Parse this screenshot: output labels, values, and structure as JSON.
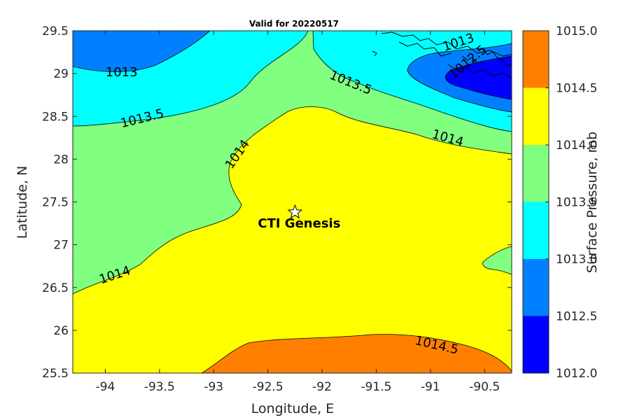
{
  "chart_data": {
    "type": "contour",
    "title": "Valid for 20220517",
    "xlabel": "Longitude, E",
    "ylabel": "Latitude, N",
    "xlim": [
      -94.3,
      -90.25
    ],
    "ylim": [
      25.5,
      29.5
    ],
    "xticks": [
      "-94",
      "-93.5",
      "-93",
      "-92.5",
      "-92",
      "-91.5",
      "-91",
      "-90.5"
    ],
    "xtick_values": [
      -94,
      -93.5,
      -93,
      -92.5,
      -92,
      -91.5,
      -91,
      -90.5
    ],
    "yticks": [
      "25.5",
      "26",
      "26.5",
      "27",
      "27.5",
      "28",
      "28.5",
      "29",
      "29.5"
    ],
    "ytick_values": [
      25.5,
      26,
      26.5,
      27,
      27.5,
      28,
      28.5,
      29,
      29.5
    ],
    "colorbar": {
      "label": "Surface Pressure, mb",
      "ticks": [
        "1015.0",
        "1014.5",
        "1014.0",
        "1013.5",
        "1013.0",
        "1012.5",
        "1012.0"
      ],
      "tick_values": [
        1015.0,
        1014.5,
        1014.0,
        1013.5,
        1013.0,
        1012.5,
        1012.0
      ],
      "levels": [
        {
          "range": [
            1012.0,
            1012.5
          ],
          "color": "#0000ff"
        },
        {
          "range": [
            1012.5,
            1013.0
          ],
          "color": "#0080ff"
        },
        {
          "range": [
            1013.0,
            1013.5
          ],
          "color": "#00ffff"
        },
        {
          "range": [
            1013.5,
            1014.0
          ],
          "color": "#80ff80"
        },
        {
          "range": [
            1014.0,
            1014.5
          ],
          "color": "#ffff00"
        },
        {
          "range": [
            1014.5,
            1015.0
          ],
          "color": "#ff8000"
        }
      ]
    },
    "contour_labels": [
      {
        "text": "1013",
        "lon": -93.85,
        "lat": 28.97,
        "angle": 0
      },
      {
        "text": "1013.5",
        "lon": -93.65,
        "lat": 28.43,
        "angle": -14
      },
      {
        "text": "1014",
        "lon": -92.75,
        "lat": 28.03,
        "angle": -55
      },
      {
        "text": "1013.5",
        "lon": -91.75,
        "lat": 28.85,
        "angle": 22
      },
      {
        "text": "1014",
        "lon": -90.85,
        "lat": 28.2,
        "angle": 16
      },
      {
        "text": "1013",
        "lon": -90.73,
        "lat": 29.32,
        "angle": -18
      },
      {
        "text": "1012.5",
        "lon": -90.63,
        "lat": 29.1,
        "angle": -40
      },
      {
        "text": "1014",
        "lon": -93.9,
        "lat": 26.6,
        "angle": -18
      },
      {
        "text": "1014.5",
        "lon": -90.95,
        "lat": 25.78,
        "angle": 13
      }
    ],
    "marker": {
      "label": "CTI Genesis",
      "lon": -92.25,
      "lat": 27.38,
      "symbol": "star"
    }
  }
}
